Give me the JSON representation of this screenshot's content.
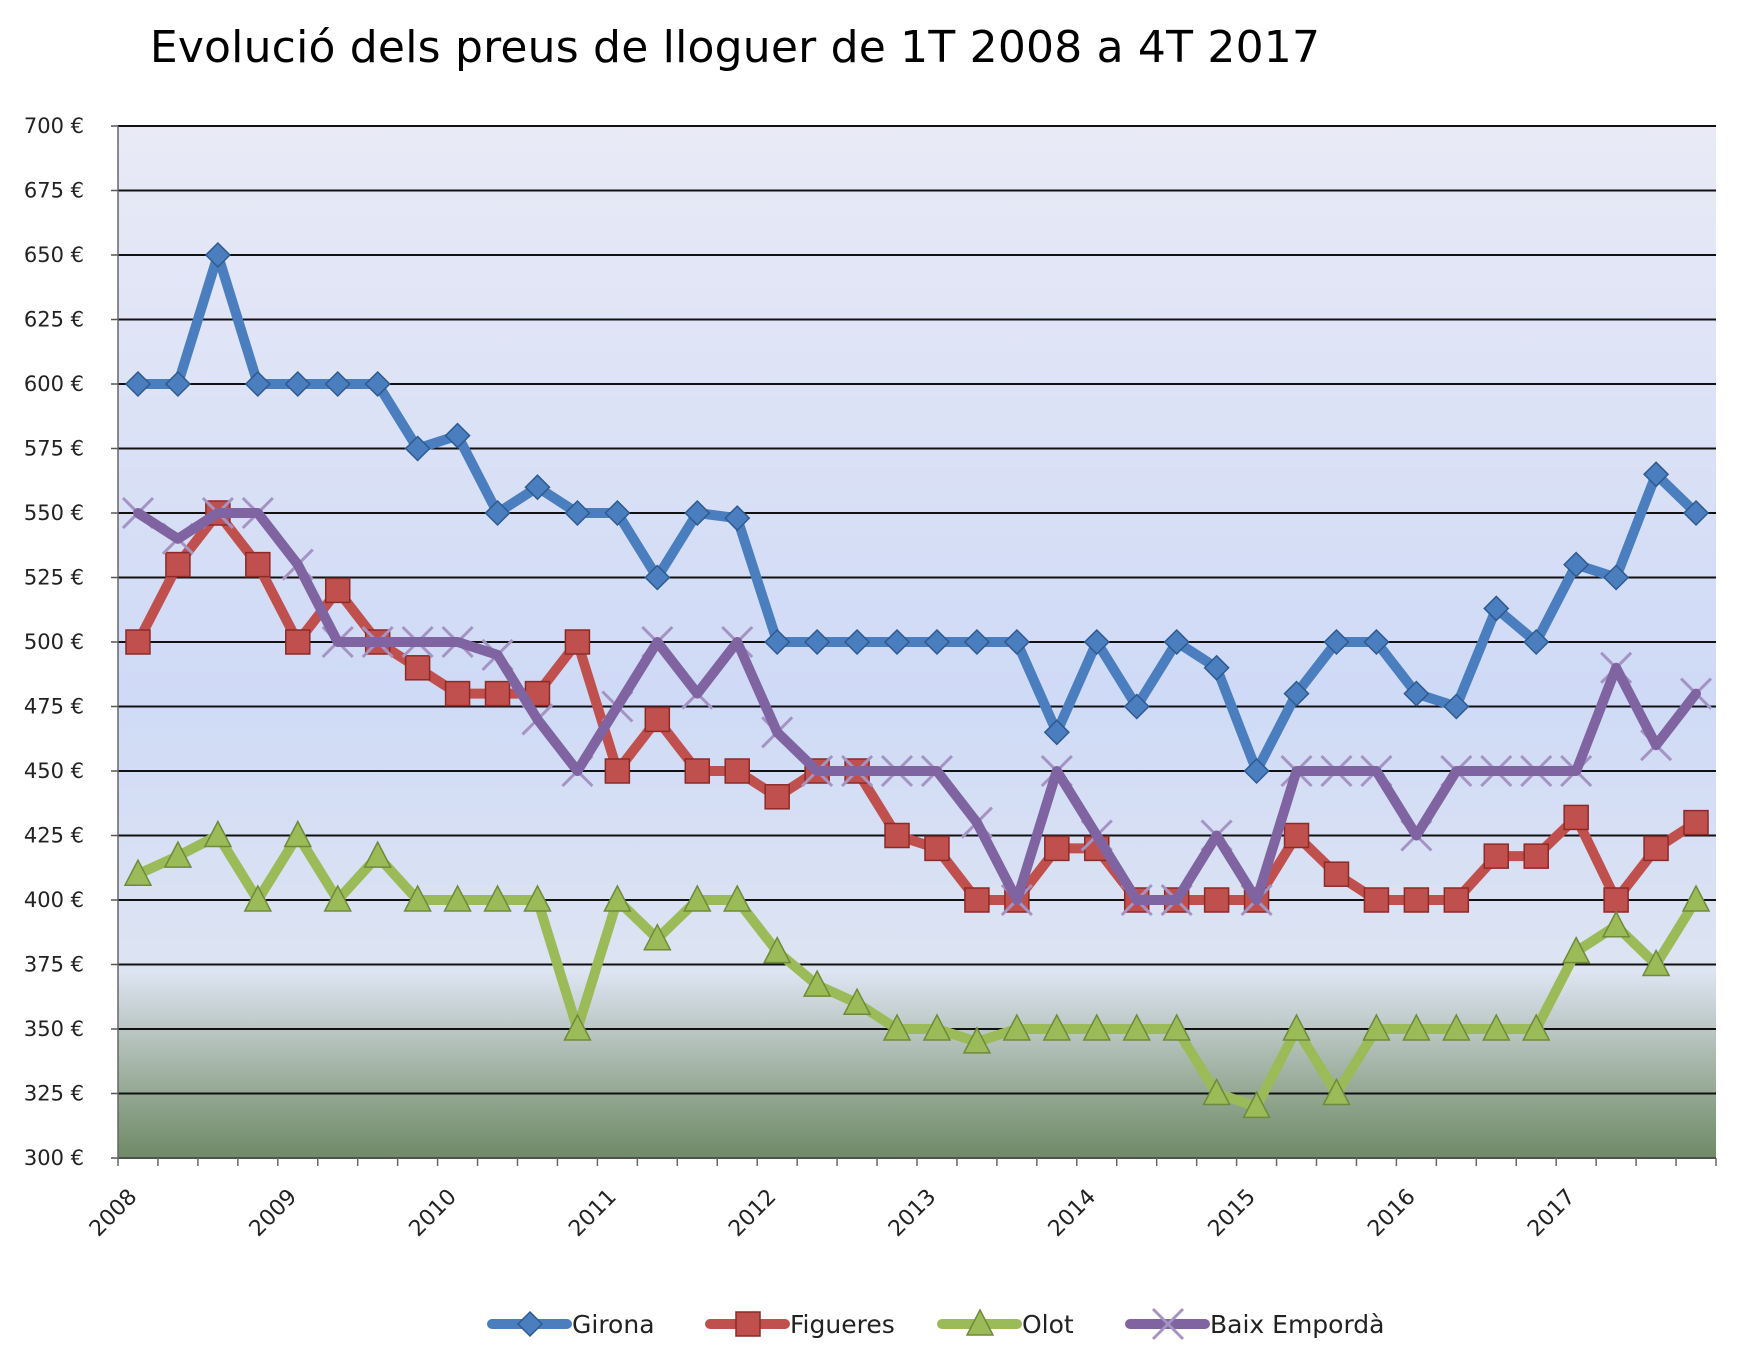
{
  "chart_data": {
    "type": "line",
    "title": "Evolució dels preus de lloguer de 1T 2008 a 4T 2017",
    "xlabel": "",
    "ylabel": "",
    "ylim": [
      300,
      700
    ],
    "y_ticks": [
      "300 €",
      "325 €",
      "350 €",
      "375 €",
      "400 €",
      "425 €",
      "450 €",
      "475 €",
      "500 €",
      "525 €",
      "550 €",
      "575 €",
      "600 €",
      "625 €",
      "650 €",
      "675 €",
      "700 €"
    ],
    "x_year_labels": [
      "2008",
      "2009",
      "2010",
      "2011",
      "2012",
      "2013",
      "2014",
      "2015",
      "2016",
      "2017"
    ],
    "quarters_per_year": 4,
    "grid": true,
    "legend_position": "bottom",
    "series": [
      {
        "name": "Girona",
        "color": "#4a7ebf",
        "marker": "diamond",
        "values": [
          600,
          600,
          650,
          600,
          600,
          600,
          600,
          575,
          580,
          550,
          560,
          550,
          550,
          525,
          550,
          548,
          500,
          500,
          500,
          500,
          500,
          500,
          500,
          465,
          500,
          475,
          500,
          490,
          450,
          480,
          500,
          500,
          480,
          475,
          513,
          500,
          530,
          525,
          565,
          550
        ]
      },
      {
        "name": "Figueres",
        "color": "#c0504d",
        "marker": "square",
        "values": [
          500,
          530,
          550,
          530,
          500,
          520,
          500,
          490,
          480,
          480,
          480,
          500,
          450,
          470,
          450,
          450,
          440,
          450,
          450,
          425,
          420,
          400,
          400,
          420,
          420,
          400,
          400,
          400,
          400,
          425,
          410,
          400,
          400,
          400,
          417,
          417,
          432,
          400,
          420,
          430
        ]
      },
      {
        "name": "Olot",
        "color": "#9bbb59",
        "marker": "triangle",
        "values": [
          410,
          417,
          425,
          400,
          425,
          400,
          417,
          400,
          400,
          400,
          400,
          350,
          400,
          385,
          400,
          400,
          380,
          367,
          360,
          350,
          350,
          345,
          350,
          350,
          350,
          350,
          350,
          325,
          320,
          350,
          325,
          350,
          350,
          350,
          350,
          350,
          380,
          390,
          375,
          400
        ]
      },
      {
        "name": "Baix Empordà",
        "color": "#8064a2",
        "marker": "x",
        "values": [
          550,
          540,
          550,
          550,
          530,
          500,
          500,
          500,
          500,
          495,
          470,
          450,
          475,
          500,
          480,
          500,
          465,
          450,
          450,
          450,
          450,
          430,
          400,
          450,
          425,
          400,
          400,
          425,
          400,
          450,
          450,
          450,
          425,
          450,
          450,
          450,
          450,
          490,
          460,
          480
        ]
      }
    ]
  }
}
